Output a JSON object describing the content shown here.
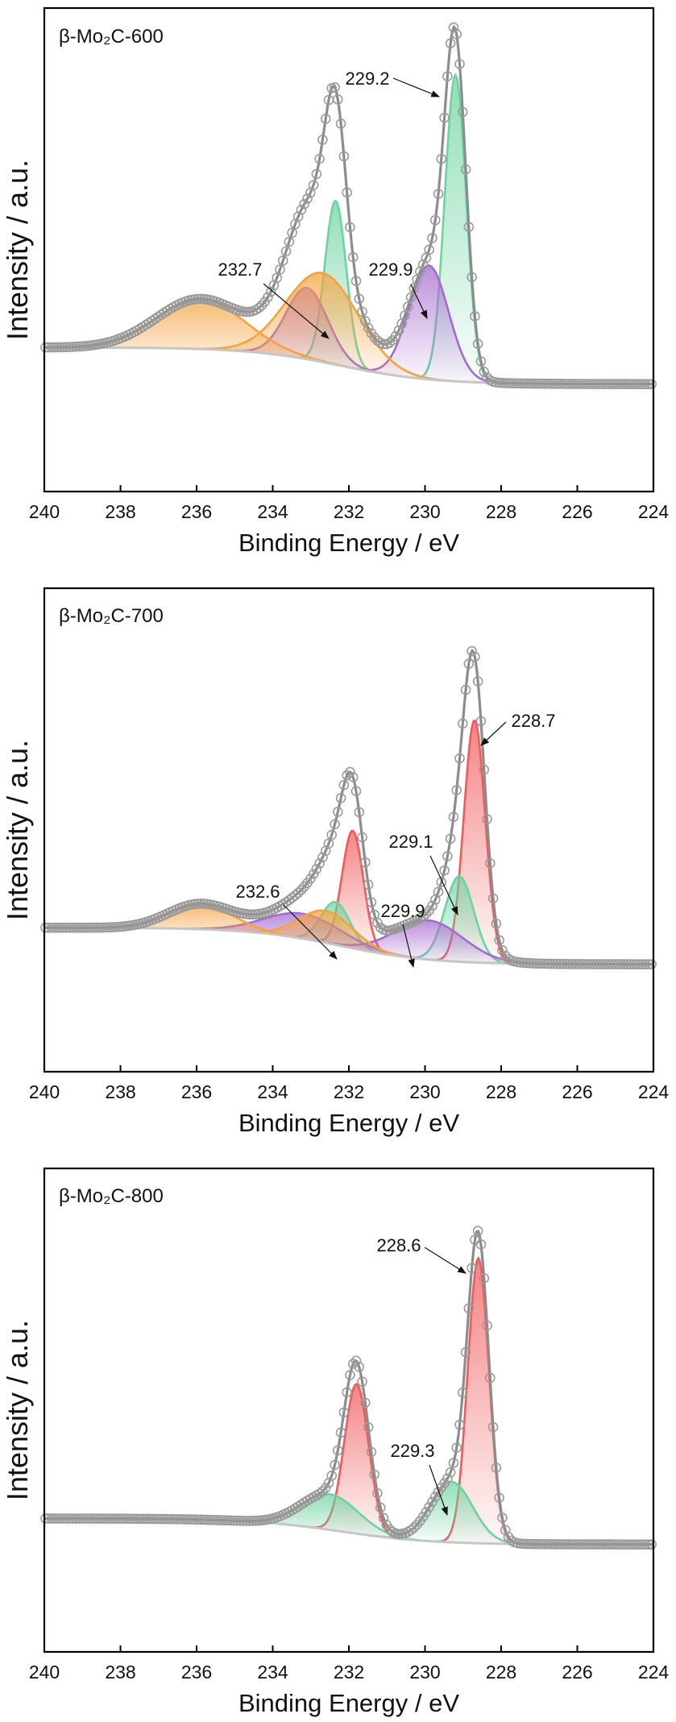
{
  "chart_data": [
    {
      "type": "line",
      "title": "β-Mo₂C-600",
      "xlabel": "Binding Energy / eV",
      "ylabel": "Intensity / a.u.",
      "x_ticks": [
        240,
        238,
        236,
        234,
        232,
        230,
        228,
        226,
        224
      ],
      "xlim": [
        240,
        224
      ],
      "ylim": [
        0,
        1
      ],
      "grid": false,
      "baseline": {
        "left": 0.115,
        "right": 0.012
      },
      "series": [
        {
          "center": 229.2,
          "height": 0.86,
          "width": 0.28,
          "color": "#6dd3a1"
        },
        {
          "center": 232.35,
          "height": 0.46,
          "width": 0.28,
          "color": "#6dd3a1"
        },
        {
          "center": 229.9,
          "height": 0.32,
          "width": 0.52,
          "color": "#a56ad0"
        },
        {
          "center": 233.1,
          "height": 0.2,
          "width": 0.55,
          "color": "#a56ad0"
        },
        {
          "center": 232.7,
          "height": 0.25,
          "width": 0.95,
          "color": "#f4a341"
        },
        {
          "center": 235.9,
          "height": 0.14,
          "width": 1.15,
          "color": "#f4a341"
        }
      ],
      "annotations": [
        {
          "text": "229.2",
          "peak": 229.2
        },
        {
          "text": "232.7",
          "peak": 232.7
        },
        {
          "text": "229.9",
          "peak": 229.9
        }
      ]
    },
    {
      "type": "line",
      "title": "β-Mo₂C-700",
      "xlabel": "Binding Energy / eV",
      "ylabel": "Intensity / a.u.",
      "x_ticks": [
        240,
        238,
        236,
        234,
        232,
        230,
        228,
        226,
        224
      ],
      "xlim": [
        240,
        224
      ],
      "ylim": [
        0,
        1
      ],
      "grid": false,
      "baseline": {
        "left": 0.115,
        "right": 0.012
      },
      "series": [
        {
          "center": 228.7,
          "height": 0.68,
          "width": 0.28,
          "color": "#ef5a5a"
        },
        {
          "center": 231.9,
          "height": 0.33,
          "width": 0.28,
          "color": "#ef5a5a"
        },
        {
          "center": 229.1,
          "height": 0.24,
          "width": 0.38,
          "color": "#6dd3a1"
        },
        {
          "center": 232.35,
          "height": 0.12,
          "width": 0.38,
          "color": "#6dd3a1"
        },
        {
          "center": 229.9,
          "height": 0.11,
          "width": 0.9,
          "color": "#a56ad0"
        },
        {
          "center": 233.2,
          "height": 0.07,
          "width": 1.0,
          "color": "#a56ad0"
        },
        {
          "center": 232.6,
          "height": 0.09,
          "width": 0.7,
          "color": "#f4a341"
        },
        {
          "center": 235.9,
          "height": 0.07,
          "width": 0.85,
          "color": "#f4a341"
        }
      ],
      "annotations": [
        {
          "text": "228.7",
          "peak": 228.7
        },
        {
          "text": "229.1",
          "peak": 229.1
        },
        {
          "text": "232.6",
          "peak": 232.6
        },
        {
          "text": "229.9",
          "peak": 229.9
        }
      ]
    },
    {
      "type": "line",
      "title": "β-Mo₂C-800",
      "xlabel": "Binding Energy / eV",
      "ylabel": "Intensity / a.u.",
      "x_ticks": [
        240,
        238,
        236,
        234,
        232,
        230,
        228,
        226,
        224
      ],
      "xlim": [
        240,
        224
      ],
      "ylim": [
        0,
        1
      ],
      "grid": false,
      "baseline": {
        "left": 0.085,
        "right": 0.012
      },
      "series": [
        {
          "center": 228.6,
          "height": 0.8,
          "width": 0.28,
          "color": "#ef5a5a"
        },
        {
          "center": 231.8,
          "height": 0.42,
          "width": 0.32,
          "color": "#ef5a5a"
        },
        {
          "center": 229.3,
          "height": 0.17,
          "width": 0.55,
          "color": "#6dd3a1"
        },
        {
          "center": 232.5,
          "height": 0.1,
          "width": 0.75,
          "color": "#6dd3a1"
        }
      ],
      "annotations": [
        {
          "text": "228.6",
          "peak": 228.6
        },
        {
          "text": "229.3",
          "peak": 229.3
        }
      ]
    }
  ]
}
